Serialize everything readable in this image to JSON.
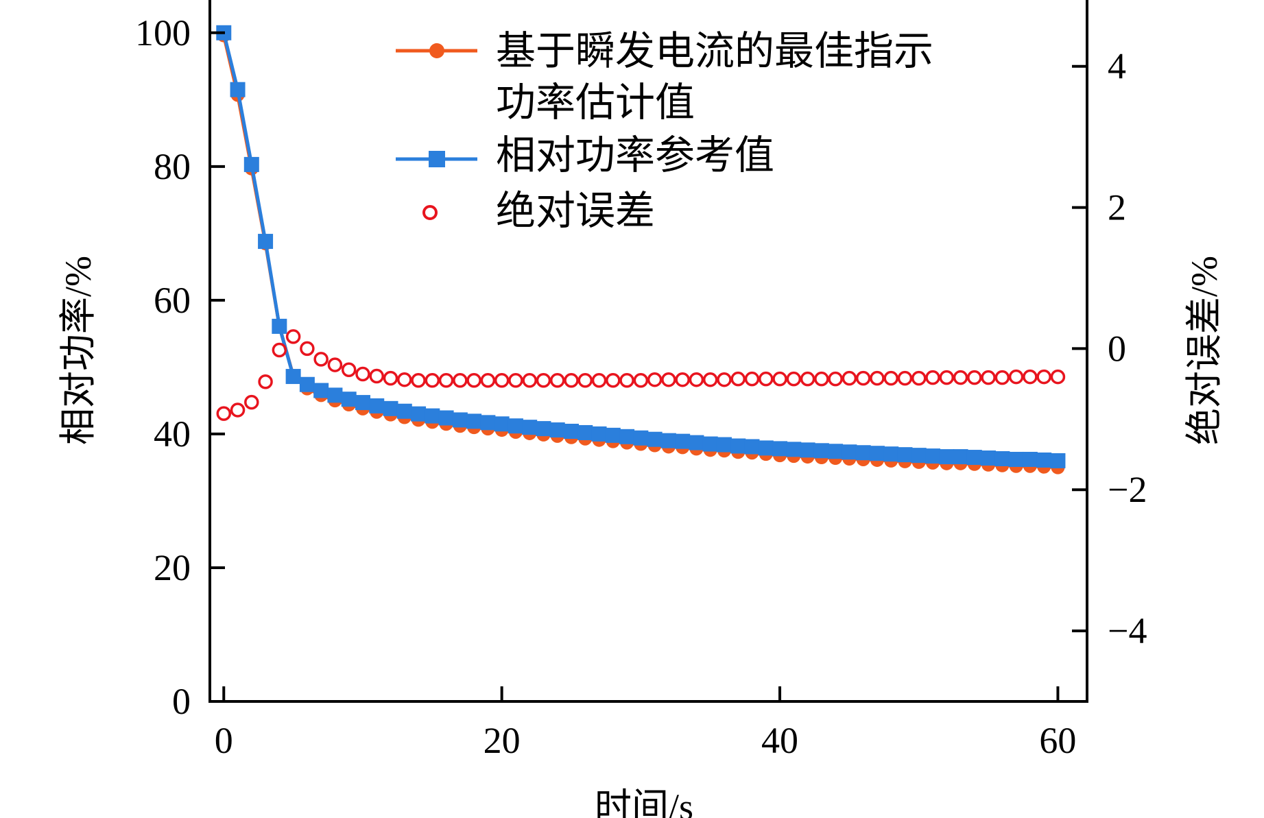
{
  "chart_data": {
    "type": "line",
    "xlabel": "时间/s",
    "ylabel": "相对功率/%",
    "y2label": "绝对误差/%",
    "xlim": [
      -1,
      62.1
    ],
    "ylim": [
      0,
      104.9
    ],
    "y2lim": [
      -5.0,
      4.94
    ],
    "xticks": [
      0,
      20,
      40,
      60
    ],
    "yticks": [
      0,
      20,
      40,
      60,
      80,
      100
    ],
    "y2ticks": [
      -4,
      -2,
      0,
      2,
      4
    ],
    "y2tick_labels": [
      "−4",
      "−2",
      "0",
      "2",
      "4"
    ],
    "grid": false,
    "legend_placement": "top-center",
    "legend": {
      "estimate_line1": "基于瞬发电流的最佳指示",
      "estimate_line2": "功率估计值",
      "reference": "相对功率参考值",
      "error": "绝对误差"
    },
    "x": [
      0,
      1,
      2,
      3,
      4,
      5,
      6,
      7,
      8,
      9,
      10,
      11,
      12,
      13,
      14,
      15,
      16,
      17,
      18,
      19,
      20,
      21,
      22,
      23,
      24,
      25,
      26,
      27,
      28,
      29,
      30,
      31,
      32,
      33,
      34,
      35,
      36,
      37,
      38,
      39,
      40,
      41,
      42,
      43,
      44,
      45,
      46,
      47,
      48,
      49,
      50,
      51,
      52,
      53,
      54,
      55,
      56,
      57,
      58,
      59,
      60
    ],
    "series": [
      {
        "name": "基于瞬发电流的最佳指示功率估计值",
        "axis": "left",
        "color": "#f05a1e",
        "marker": "circle",
        "values": [
          99.6,
          90.7,
          79.7,
          68.5,
          56.1,
          48.7,
          46.8,
          45.8,
          45.0,
          44.4,
          43.8,
          43.3,
          42.9,
          42.5,
          42.1,
          41.8,
          41.5,
          41.2,
          41.0,
          40.8,
          40.6,
          40.3,
          40.1,
          39.9,
          39.7,
          39.5,
          39.3,
          39.1,
          38.9,
          38.7,
          38.5,
          38.3,
          38.1,
          38.0,
          37.8,
          37.6,
          37.5,
          37.3,
          37.2,
          37.0,
          36.8,
          36.7,
          36.6,
          36.5,
          36.4,
          36.3,
          36.2,
          36.1,
          36.0,
          35.9,
          35.8,
          35.7,
          35.6,
          35.6,
          35.5,
          35.4,
          35.3,
          35.2,
          35.2,
          35.1,
          35.0
        ]
      },
      {
        "name": "相对功率参考值",
        "axis": "left",
        "color": "#2b7fdc",
        "marker": "square",
        "values": [
          100,
          91.5,
          80.3,
          68.8,
          56.1,
          48.6,
          47.4,
          46.5,
          45.8,
          45.2,
          44.7,
          44.2,
          43.8,
          43.4,
          43.0,
          42.7,
          42.4,
          42.1,
          41.9,
          41.7,
          41.5,
          41.2,
          41.0,
          40.8,
          40.6,
          40.4,
          40.2,
          40.0,
          39.8,
          39.6,
          39.4,
          39.2,
          39.0,
          38.9,
          38.7,
          38.5,
          38.4,
          38.2,
          38.1,
          37.9,
          37.8,
          37.7,
          37.6,
          37.5,
          37.4,
          37.3,
          37.2,
          37.1,
          37.0,
          36.9,
          36.8,
          36.7,
          36.6,
          36.6,
          36.5,
          36.4,
          36.3,
          36.2,
          36.2,
          36.1,
          36.0
        ]
      },
      {
        "name": "绝对误差",
        "axis": "right",
        "color": "#e8141e",
        "marker": "open-circle",
        "values": [
          -0.92,
          -0.87,
          -0.76,
          -0.47,
          -0.02,
          0.17,
          0.0,
          -0.15,
          -0.23,
          -0.3,
          -0.36,
          -0.39,
          -0.42,
          -0.44,
          -0.45,
          -0.45,
          -0.45,
          -0.45,
          -0.45,
          -0.45,
          -0.45,
          -0.45,
          -0.45,
          -0.45,
          -0.45,
          -0.45,
          -0.45,
          -0.45,
          -0.45,
          -0.45,
          -0.45,
          -0.44,
          -0.44,
          -0.44,
          -0.44,
          -0.44,
          -0.44,
          -0.43,
          -0.43,
          -0.43,
          -0.43,
          -0.43,
          -0.43,
          -0.43,
          -0.43,
          -0.42,
          -0.42,
          -0.42,
          -0.42,
          -0.42,
          -0.42,
          -0.41,
          -0.41,
          -0.41,
          -0.41,
          -0.41,
          -0.41,
          -0.4,
          -0.4,
          -0.4,
          -0.4
        ]
      }
    ]
  }
}
